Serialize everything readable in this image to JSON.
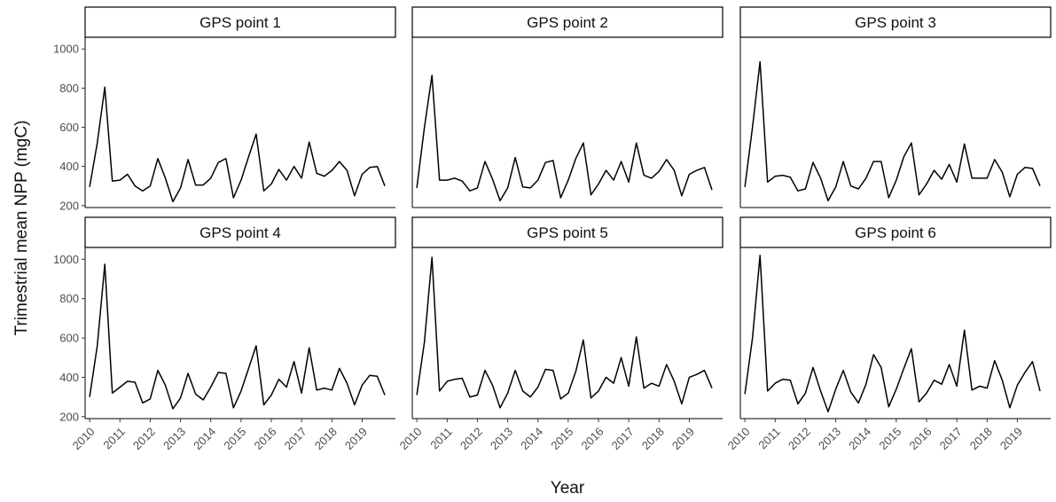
{
  "chart_data": {
    "type": "line",
    "layout": "facet-grid-2x3",
    "xlabel": "Year",
    "ylabel": "Trimestrial mean NPP (mgC)",
    "ylim": [
      190,
      1060
    ],
    "yticks": [
      200,
      400,
      600,
      800,
      1000
    ],
    "xlim": [
      2009.85,
      2020.1
    ],
    "xticks": [
      2010,
      2011,
      2012,
      2013,
      2014,
      2015,
      2016,
      2017,
      2018,
      2019
    ],
    "x_start": 2010.0,
    "x_step": 0.25,
    "grid": false,
    "panels": [
      {
        "title": "GPS point 1",
        "values": [
          295,
          520,
          805,
          325,
          330,
          360,
          300,
          275,
          300,
          440,
          340,
          220,
          290,
          435,
          305,
          305,
          340,
          420,
          440,
          240,
          330,
          450,
          565,
          275,
          310,
          385,
          330,
          400,
          340,
          525,
          365,
          350,
          380,
          425,
          380,
          250,
          360,
          395,
          400,
          300
        ]
      },
      {
        "title": "GPS point 2",
        "values": [
          290,
          600,
          865,
          330,
          330,
          340,
          325,
          275,
          290,
          425,
          335,
          225,
          290,
          445,
          295,
          290,
          330,
          420,
          430,
          240,
          330,
          440,
          520,
          255,
          310,
          380,
          330,
          425,
          320,
          520,
          355,
          340,
          375,
          435,
          380,
          250,
          360,
          380,
          395,
          280
        ]
      },
      {
        "title": "GPS point 3",
        "values": [
          295,
          600,
          935,
          320,
          350,
          355,
          345,
          275,
          285,
          420,
          340,
          225,
          295,
          425,
          300,
          285,
          340,
          425,
          425,
          240,
          330,
          450,
          520,
          255,
          310,
          380,
          335,
          410,
          320,
          515,
          340,
          340,
          340,
          435,
          370,
          245,
          360,
          395,
          390,
          300
        ]
      },
      {
        "title": "GPS point 4",
        "values": [
          300,
          560,
          975,
          320,
          350,
          380,
          375,
          270,
          290,
          435,
          360,
          240,
          295,
          420,
          315,
          285,
          350,
          425,
          420,
          245,
          330,
          445,
          560,
          260,
          310,
          390,
          350,
          480,
          320,
          550,
          335,
          345,
          335,
          445,
          370,
          260,
          360,
          410,
          405,
          310
        ]
      },
      {
        "title": "GPS point 5",
        "values": [
          310,
          580,
          1010,
          330,
          380,
          390,
          395,
          300,
          310,
          435,
          360,
          245,
          320,
          435,
          330,
          300,
          350,
          440,
          435,
          290,
          320,
          430,
          590,
          295,
          330,
          400,
          370,
          500,
          355,
          605,
          345,
          370,
          355,
          465,
          380,
          265,
          400,
          415,
          435,
          345
        ]
      },
      {
        "title": "GPS point 6",
        "values": [
          315,
          600,
          1020,
          330,
          370,
          390,
          385,
          265,
          320,
          450,
          330,
          225,
          340,
          435,
          325,
          270,
          365,
          515,
          450,
          250,
          340,
          445,
          545,
          275,
          320,
          385,
          365,
          465,
          355,
          640,
          335,
          355,
          345,
          485,
          385,
          245,
          360,
          425,
          480,
          330
        ]
      }
    ]
  }
}
